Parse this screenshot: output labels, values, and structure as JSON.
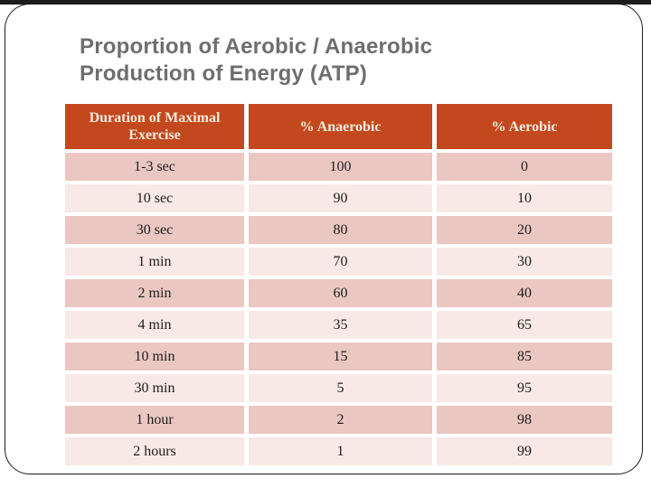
{
  "slide": {
    "title": {
      "line1": "Proportion of Aerobic / Anaerobic",
      "line2": "Production of Energy (ATP)"
    },
    "table": {
      "headers": [
        "Duration of Maximal Exercise",
        "% Anaerobic",
        "% Aerobic"
      ],
      "rows": [
        [
          "1-3 sec",
          "100",
          "0"
        ],
        [
          "10 sec",
          "90",
          "10"
        ],
        [
          "30 sec",
          "80",
          "20"
        ],
        [
          "1 min",
          "70",
          "30"
        ],
        [
          "2 min",
          "60",
          "40"
        ],
        [
          "4 min",
          "35",
          "65"
        ],
        [
          "10 min",
          "15",
          "85"
        ],
        [
          "30 min",
          "5",
          "95"
        ],
        [
          "1 hour",
          "2",
          "98"
        ],
        [
          "2 hours",
          "1",
          "99"
        ]
      ]
    },
    "colors": {
      "header_bg": "#C4481D",
      "header_text": "#F3ECDF",
      "row_dark": "#EBC7C2",
      "row_light": "#F8E9E6",
      "title_text": "#6E6E70",
      "frame_line": "#1C1C1C"
    }
  }
}
